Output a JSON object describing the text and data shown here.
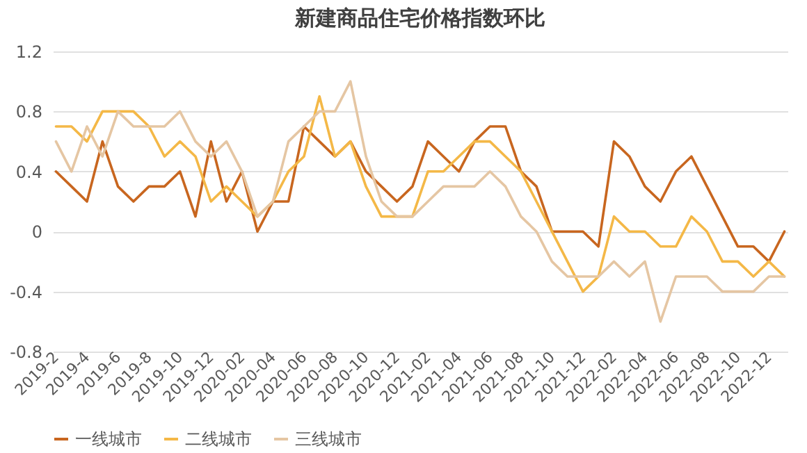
{
  "chart_data": {
    "type": "line",
    "title": "新建商品住宅价格指数环比",
    "categories": [
      "2019-2",
      null,
      "2019-4",
      null,
      "2019-6",
      null,
      "2019-8",
      null,
      "2019-10",
      null,
      "2019-12",
      null,
      "2020-02",
      null,
      "2020-04",
      null,
      "2020-06",
      null,
      "2020-08",
      null,
      "2020-10",
      null,
      "2020-12",
      null,
      "2021-02",
      null,
      "2021-04",
      null,
      "2021-06",
      null,
      "2021-08",
      null,
      "2021-10",
      null,
      "2021-12",
      null,
      "2022-02",
      null,
      "2022-04",
      null,
      "2022-06",
      null,
      "2022-08",
      null,
      "2022-10",
      null,
      "2022-12",
      null
    ],
    "series": [
      {
        "name": "一线城市",
        "color": "#c8661f",
        "values": [
          0.4,
          0.3,
          0.2,
          0.6,
          0.3,
          0.2,
          0.3,
          0.3,
          0.4,
          0.1,
          0.6,
          0.2,
          0.4,
          0.0,
          0.2,
          0.2,
          0.7,
          0.6,
          0.5,
          0.6,
          0.4,
          0.3,
          0.2,
          0.3,
          0.6,
          0.5,
          0.4,
          0.6,
          0.7,
          0.7,
          0.4,
          0.3,
          0.0,
          0.0,
          0.0,
          -0.1,
          0.6,
          0.5,
          0.3,
          0.2,
          0.4,
          0.5,
          0.3,
          0.1,
          -0.1,
          -0.1,
          -0.2,
          0.0
        ]
      },
      {
        "name": "二线城市",
        "color": "#f4b847",
        "values": [
          0.7,
          0.7,
          0.6,
          0.8,
          0.8,
          0.8,
          0.7,
          0.5,
          0.6,
          0.5,
          0.2,
          0.3,
          0.2,
          0.1,
          0.2,
          0.4,
          0.5,
          0.9,
          0.5,
          0.6,
          0.3,
          0.1,
          0.1,
          0.1,
          0.4,
          0.4,
          0.5,
          0.6,
          0.6,
          0.5,
          0.4,
          0.2,
          0.0,
          -0.2,
          -0.4,
          -0.3,
          0.1,
          0.0,
          0.0,
          -0.1,
          -0.1,
          0.1,
          0.0,
          -0.2,
          -0.2,
          -0.3,
          -0.2,
          -0.3
        ]
      },
      {
        "name": "三线城市",
        "color": "#e5c6a3",
        "values": [
          0.6,
          0.4,
          0.7,
          0.5,
          0.8,
          0.7,
          0.7,
          0.7,
          0.8,
          0.6,
          0.5,
          0.6,
          0.4,
          0.1,
          0.2,
          0.6,
          0.7,
          0.8,
          0.8,
          1.0,
          0.5,
          0.2,
          0.1,
          0.1,
          0.2,
          0.3,
          0.3,
          0.3,
          0.4,
          0.3,
          0.1,
          0.0,
          -0.2,
          -0.3,
          -0.3,
          -0.3,
          -0.2,
          -0.3,
          -0.2,
          -0.6,
          -0.3,
          -0.3,
          -0.3,
          -0.4,
          -0.4,
          -0.4,
          -0.3,
          -0.3
        ]
      }
    ],
    "ylim": [
      -0.8,
      1.2
    ],
    "yticks": [
      -0.8,
      -0.4,
      0,
      0.4,
      0.8,
      1.2
    ],
    "grid": "y",
    "legend": "bottom",
    "marker": "none",
    "line_style": "solid"
  }
}
